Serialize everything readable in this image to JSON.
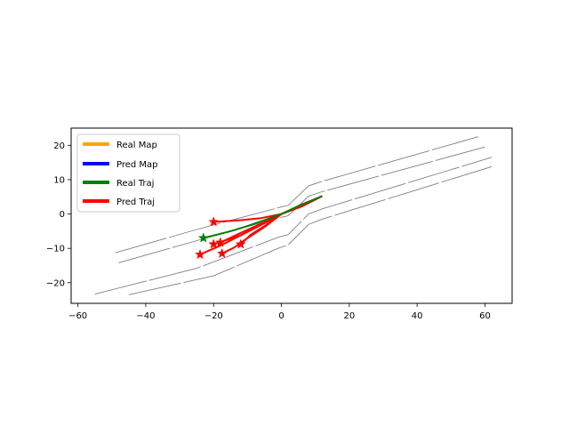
{
  "chart_data": {
    "type": "line",
    "title": "",
    "xlabel": "",
    "ylabel": "",
    "xlim": [
      -62,
      68
    ],
    "ylim": [
      -26,
      25
    ],
    "x_ticks": [
      -60,
      -40,
      -20,
      0,
      20,
      40,
      60
    ],
    "y_ticks": [
      -20,
      -10,
      0,
      10,
      20
    ],
    "x_tick_labels": [
      "−60",
      "−40",
      "−20",
      "0",
      "20",
      "40",
      "60"
    ],
    "y_tick_labels": [
      "−20",
      "−10",
      "0",
      "10",
      "20"
    ],
    "grid": false,
    "legend": {
      "placement": "upper-left",
      "entries": [
        {
          "label": "Real Map",
          "color": "#FFA500"
        },
        {
          "label": "Pred Map",
          "color": "#0000FF"
        },
        {
          "label": "Real Traj",
          "color": "#008000"
        },
        {
          "label": "Pred Traj",
          "color": "#FF0000"
        }
      ]
    },
    "map_lines": {
      "color": "#808080",
      "lines": [
        [
          [
            -49,
            -11.3
          ],
          [
            -25,
            -4.5
          ],
          [
            -1,
            1.8
          ],
          [
            2,
            2.5
          ],
          [
            8,
            8.2
          ],
          [
            12,
            9.5
          ],
          [
            58,
            22.5
          ]
        ],
        [
          [
            -48,
            -14.2
          ],
          [
            -24,
            -7.5
          ],
          [
            -1,
            -1.2
          ],
          [
            2,
            -0.5
          ],
          [
            8,
            5.2
          ],
          [
            12,
            6.5
          ],
          [
            60,
            19.5
          ]
        ],
        [
          [
            -55,
            -23.3
          ],
          [
            -25,
            -15.8
          ],
          [
            -1,
            -6.8
          ],
          [
            2,
            -6
          ],
          [
            8,
            0
          ],
          [
            12,
            1.5
          ],
          [
            62,
            16.5
          ]
        ],
        [
          [
            -45,
            -23.5
          ],
          [
            -20,
            -18
          ],
          [
            -1,
            -10
          ],
          [
            2,
            -9
          ],
          [
            8,
            -3
          ],
          [
            12,
            -1.5
          ],
          [
            62,
            13.8
          ]
        ]
      ]
    },
    "series": [
      {
        "name": "Real Traj",
        "color": "#008000",
        "marker": "star",
        "points": [
          [
            12,
            5.2
          ],
          [
            5,
            2.3
          ],
          [
            0,
            0
          ],
          [
            -5,
            -1.8
          ],
          [
            -10,
            -3.5
          ],
          [
            -15,
            -5
          ],
          [
            -23,
            -7
          ]
        ],
        "endpoint": [
          -23,
          -7
        ]
      },
      {
        "name": "Pred Traj",
        "color": "#FF0000",
        "marker": "star",
        "trajectories": [
          [
            [
              12,
              5.2
            ],
            [
              6,
              2.8
            ],
            [
              0,
              0
            ],
            [
              -6,
              -1.2
            ],
            [
              -12,
              -1.8
            ],
            [
              -20,
              -2.3
            ]
          ],
          [
            [
              12,
              5.2
            ],
            [
              6,
              2.6
            ],
            [
              0,
              0
            ],
            [
              -6,
              -2.8
            ],
            [
              -12,
              -5.5
            ],
            [
              -18,
              -8.3
            ]
          ],
          [
            [
              12,
              5.2
            ],
            [
              6,
              2.5
            ],
            [
              0,
              0
            ],
            [
              -6,
              -3
            ],
            [
              -12,
              -6.2
            ],
            [
              -20,
              -8.8
            ]
          ],
          [
            [
              12,
              5.2
            ],
            [
              6,
              2.3
            ],
            [
              0,
              0
            ],
            [
              -5,
              -3.5
            ],
            [
              -9,
              -6
            ],
            [
              -12,
              -8.8
            ]
          ],
          [
            [
              12,
              5.2
            ],
            [
              6,
              2.2
            ],
            [
              0,
              0
            ],
            [
              -5,
              -3.8
            ],
            [
              -10,
              -7
            ],
            [
              -14,
              -9.8
            ],
            [
              -17.5,
              -11.5
            ]
          ],
          [
            [
              12,
              5.2
            ],
            [
              6,
              2.4
            ],
            [
              0,
              0
            ],
            [
              -6,
              -3.2
            ],
            [
              -12,
              -6.2
            ],
            [
              -18,
              -9.2
            ],
            [
              -24,
              -11.8
            ]
          ]
        ]
      }
    ]
  }
}
